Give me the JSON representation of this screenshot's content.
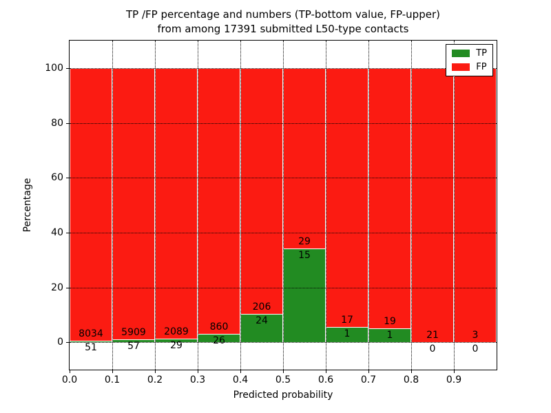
{
  "figure": {
    "title_line1": "TP /FP percentage and numbers (TP-bottom value, FP-upper)",
    "title_line2": "from among 17391 submitted L50-type contacts"
  },
  "chart_data": {
    "type": "bar",
    "subtype": "stacked-percentage-histogram",
    "title": "TP /FP percentage and numbers (TP-bottom value, FP-upper) from among 17391 submitted L50-type contacts",
    "xlabel": "Predicted probability",
    "ylabel": "Percentage",
    "total_contacts": 17391,
    "xlim": [
      0.0,
      1.0
    ],
    "ylim": [
      -10,
      110
    ],
    "yticks": [
      0,
      20,
      40,
      60,
      80,
      100
    ],
    "ytick_labels": [
      "0",
      "20",
      "40",
      "60",
      "80",
      "100"
    ],
    "xtick_labels": [
      "0.0",
      "0.1",
      "0.2",
      "0.3",
      "0.4",
      "0.5",
      "0.6",
      "0.7",
      "0.8",
      "0.9"
    ],
    "bin_start": [
      0.0,
      0.1,
      0.2,
      0.3,
      0.4,
      0.5,
      0.6,
      0.7,
      0.8,
      0.9
    ],
    "bin_width": 0.1,
    "grid": "dotted",
    "legend_position": "upper right",
    "series": [
      {
        "name": "TP",
        "color": "#228b22",
        "counts": [
          51,
          57,
          29,
          26,
          24,
          15,
          1,
          1,
          0,
          0
        ]
      },
      {
        "name": "FP",
        "color": "#fb1b12",
        "counts": [
          8034,
          5909,
          2089,
          860,
          206,
          29,
          17,
          19,
          21,
          3
        ]
      }
    ],
    "tp_percent_by_bin": [
      0.63,
      0.96,
      1.37,
      2.93,
      10.43,
      34.09,
      5.56,
      5.0,
      0.0,
      0.0
    ]
  },
  "legend": {
    "entries": [
      {
        "label": "TP",
        "color": "#228b22"
      },
      {
        "label": "FP",
        "color": "#fb1b12"
      }
    ]
  },
  "colors": {
    "tp": "#228b22",
    "fp": "#fb1b12",
    "background": "#ffffff",
    "axis": "#000000",
    "bar_edge": "#ffffff"
  }
}
